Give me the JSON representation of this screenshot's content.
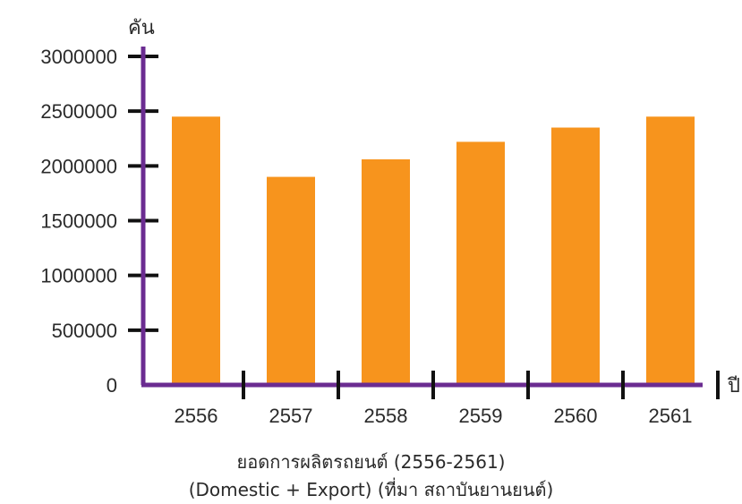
{
  "chart_data": {
    "type": "bar",
    "categories": [
      "2556",
      "2557",
      "2558",
      "2559",
      "2560",
      "2561"
    ],
    "values": [
      2450000,
      1900000,
      2060000,
      2220000,
      2350000,
      2450000
    ],
    "ylim": [
      0,
      3000000
    ],
    "yticks": [
      "0",
      "500000",
      "1000000",
      "1500000",
      "2000000",
      "2500000",
      "3000000"
    ],
    "ylabel": "คัน",
    "xlabel": "ปี",
    "title": "ยอดการผลิตรถยนต์ (2556-2561)",
    "subtitle": "(Domestic + Export) (ที่มา สถาบันยานยนต์)",
    "grid": false,
    "colors": {
      "bar": "#F7941D",
      "axis": "#6B2C91",
      "tick": "#111111"
    }
  }
}
